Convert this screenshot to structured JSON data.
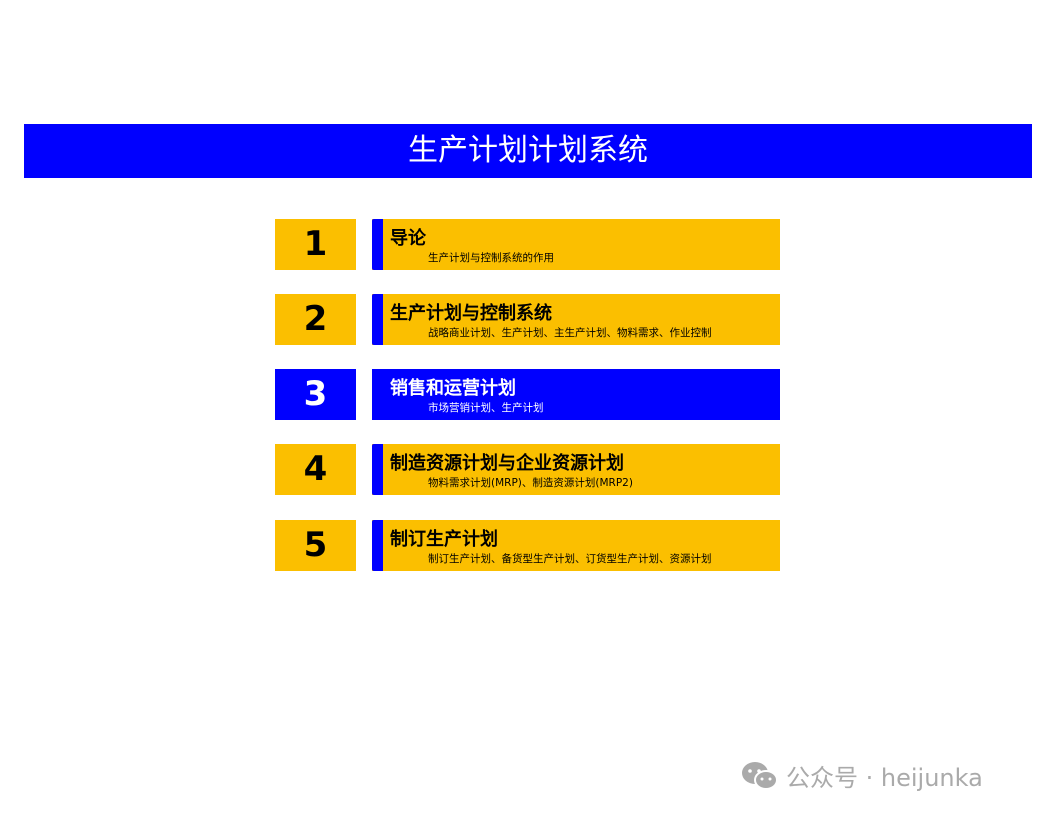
{
  "title": "生产计划计划系统",
  "colors": {
    "accent_blue": "#0000FF",
    "item_yellow": "#FBBF00"
  },
  "items": [
    {
      "number": "1",
      "title": "导论",
      "subtitle": "生产计划与控制系统的作用",
      "highlighted": false
    },
    {
      "number": "2",
      "title": "生产计划与控制系统",
      "subtitle": "战略商业计划、生产计划、主生产计划、物料需求、作业控制",
      "highlighted": false
    },
    {
      "number": "3",
      "title": "销售和运营计划",
      "subtitle": "市场营销计划、生产计划",
      "highlighted": true
    },
    {
      "number": "4",
      "title": "制造资源计划与企业资源计划",
      "subtitle": "物料需求计划(MRP)、制造资源计划(MRP2)",
      "highlighted": false
    },
    {
      "number": "5",
      "title": "制订生产计划",
      "subtitle": "制订生产计划、备货型生产计划、订货型生产计划、资源计划",
      "highlighted": false
    }
  ],
  "watermark": {
    "icon": "wechat-icon",
    "text": "公众号 · heijunka"
  }
}
